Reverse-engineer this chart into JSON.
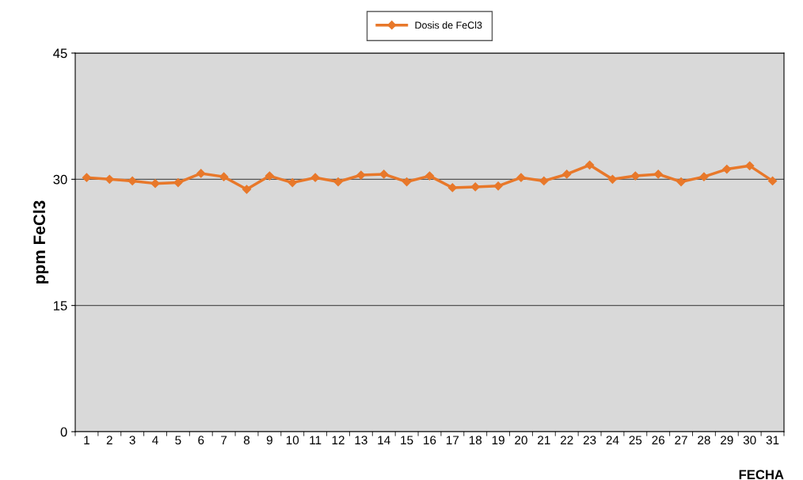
{
  "chart_data": {
    "type": "line",
    "xlabel": "FECHA",
    "ylabel": "ppm FeCl3",
    "categories": [
      "1",
      "2",
      "3",
      "4",
      "5",
      "6",
      "7",
      "8",
      "9",
      "10",
      "11",
      "12",
      "13",
      "14",
      "15",
      "16",
      "17",
      "18",
      "19",
      "20",
      "21",
      "22",
      "23",
      "24",
      "25",
      "26",
      "27",
      "28",
      "29",
      "30",
      "31"
    ],
    "series": [
      {
        "name": "Dosis de FeCl3",
        "color": "#e8782a",
        "values": [
          30.2,
          30.0,
          29.8,
          29.5,
          29.6,
          30.7,
          30.3,
          28.8,
          30.4,
          29.6,
          30.2,
          29.7,
          30.5,
          30.6,
          29.7,
          30.4,
          29.0,
          29.1,
          29.2,
          30.2,
          29.8,
          30.6,
          31.7,
          30.0,
          30.4,
          30.6,
          29.7,
          30.3,
          31.2,
          31.6,
          29.8
        ]
      }
    ],
    "ylim": [
      0,
      45
    ],
    "yticks": [
      0,
      15,
      30,
      45
    ],
    "grid": "y",
    "legend": "top",
    "marker": "diamond",
    "line_style": "solid"
  }
}
